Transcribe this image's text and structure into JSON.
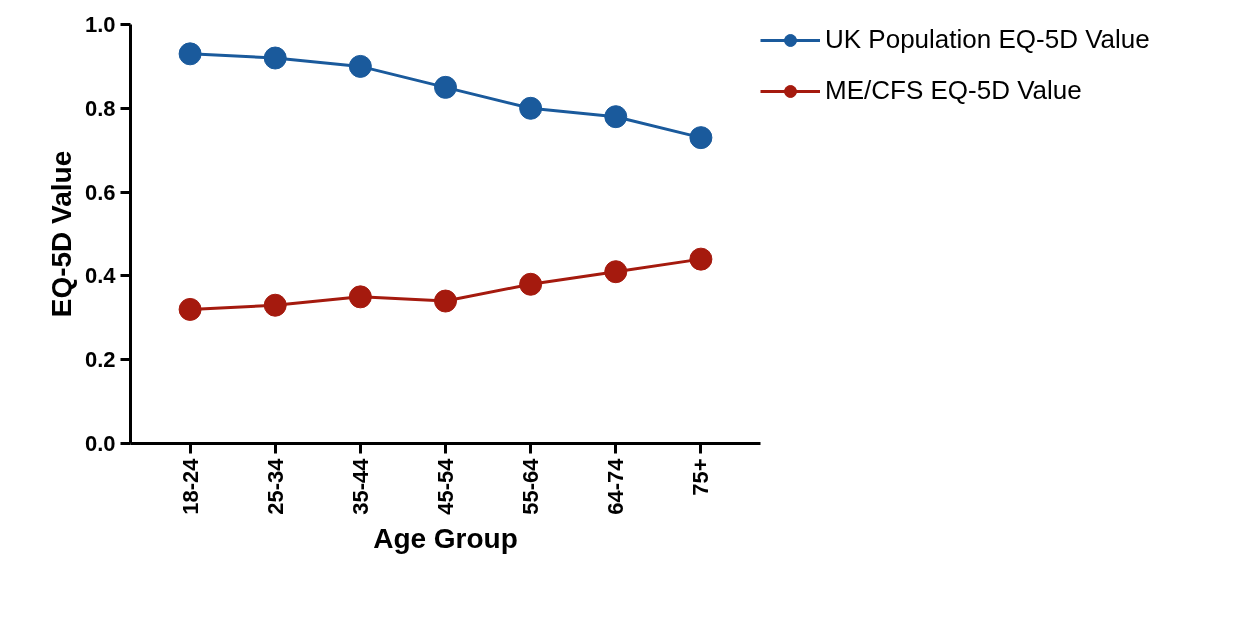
{
  "chart_data": {
    "type": "line",
    "xlabel": "Age Group",
    "ylabel": "EQ-5D Value",
    "categories": [
      "18-24",
      "25-34",
      "35-44",
      "45-54",
      "55-64",
      "64-74",
      "75+"
    ],
    "series": [
      {
        "name": "UK Population EQ-5D Value",
        "color": "#1a5a9c",
        "values": [
          0.93,
          0.92,
          0.9,
          0.85,
          0.8,
          0.78,
          0.73
        ]
      },
      {
        "name": "ME/CFS EQ-5D Value",
        "color": "#a51a0e",
        "values": [
          0.32,
          0.33,
          0.35,
          0.34,
          0.38,
          0.41,
          0.44
        ]
      }
    ],
    "ylim": [
      0,
      1.0
    ],
    "yticks": [
      {
        "value": 0,
        "label": "0.0"
      },
      0.2,
      0.4,
      0.6,
      0.8,
      {
        "value": 1.0,
        "label": "1.0"
      }
    ],
    "grid": false,
    "legend": "top right",
    "marker": "circle",
    "line_style": "solid"
  }
}
